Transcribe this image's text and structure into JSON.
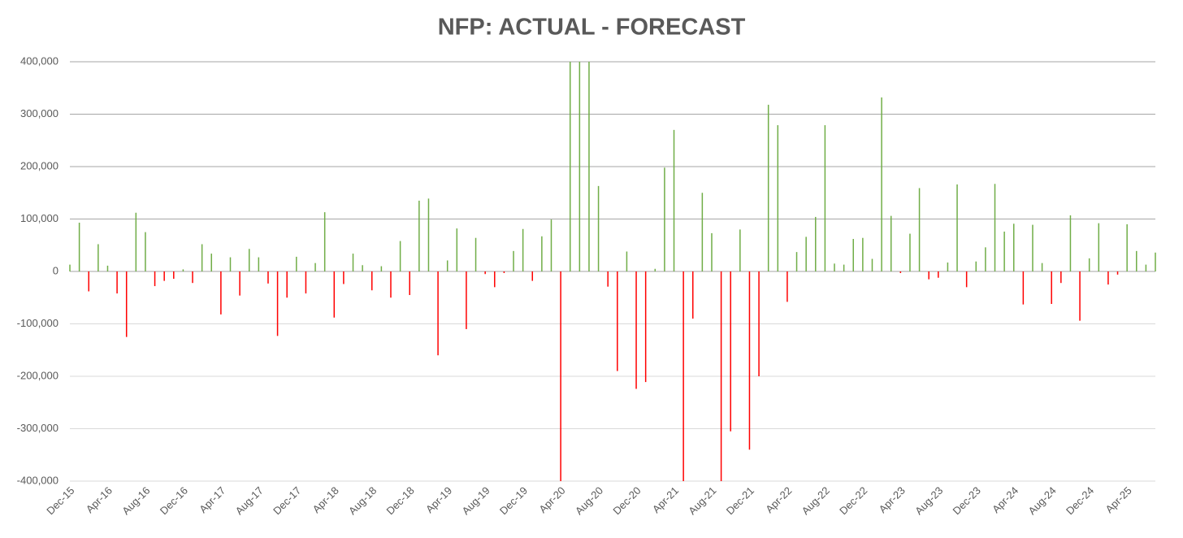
{
  "chart_data": {
    "type": "bar",
    "title": "NFP: ACTUAL - FORECAST",
    "categories": [
      "Dec-15",
      null,
      null,
      null,
      "Apr-16",
      null,
      null,
      null,
      "Aug-16",
      null,
      null,
      null,
      "Dec-16",
      null,
      null,
      null,
      "Apr-17",
      null,
      null,
      null,
      "Aug-17",
      null,
      null,
      null,
      "Dec-17",
      null,
      null,
      null,
      "Apr-18",
      null,
      null,
      null,
      "Aug-18",
      null,
      null,
      null,
      "Dec-18",
      null,
      null,
      null,
      "Apr-19",
      null,
      null,
      null,
      "Aug-19",
      null,
      null,
      null,
      "Dec-19",
      null,
      null,
      null,
      "Apr-20",
      null,
      null,
      null,
      "Aug-20",
      null,
      null,
      null,
      "Dec-20",
      null,
      null,
      null,
      "Apr-21",
      null,
      null,
      null,
      "Aug-21",
      null,
      null,
      null,
      "Dec-21",
      null,
      null,
      null,
      "Apr-22",
      null,
      null,
      null,
      "Aug-22",
      null,
      null,
      null,
      "Dec-22",
      null,
      null,
      null,
      "Apr-23",
      null,
      null,
      null,
      "Aug-23",
      null,
      null,
      null,
      "Dec-23",
      null,
      null,
      null,
      "Apr-24",
      null,
      null,
      null,
      "Aug-24",
      null,
      null,
      null,
      "Dec-24",
      null,
      null,
      null,
      "Apr-25",
      null,
      null,
      null
    ],
    "values": [
      13000,
      93000,
      -38000,
      52000,
      11000,
      -42000,
      -125000,
      112000,
      75000,
      -28000,
      -18000,
      -14000,
      4000,
      -22000,
      52000,
      34000,
      -82000,
      27000,
      -46000,
      43000,
      27000,
      -23000,
      -123000,
      -50000,
      28000,
      -42000,
      16000,
      113000,
      -88000,
      -24000,
      34000,
      12000,
      -36000,
      10000,
      -50000,
      58000,
      -45000,
      135000,
      139000,
      -160000,
      21000,
      82000,
      -110000,
      64000,
      -5000,
      -30000,
      -3000,
      39000,
      81000,
      -18000,
      67000,
      99000,
      -400000,
      400000,
      400000,
      400000,
      163000,
      -29000,
      -190000,
      38000,
      -224000,
      -211000,
      5000,
      198000,
      270000,
      -400000,
      -90000,
      150000,
      73000,
      -400000,
      -305000,
      80000,
      -340000,
      -200000,
      318000,
      279000,
      -58000,
      37000,
      66000,
      104000,
      279000,
      15000,
      13000,
      62000,
      64000,
      24000,
      332000,
      106000,
      -3000,
      72000,
      159000,
      -15000,
      -12000,
      17000,
      166000,
      -30000,
      19000,
      46000,
      167000,
      76000,
      91000,
      -63000,
      89000,
      16000,
      -62000,
      -22000,
      107000,
      -94000,
      25000,
      92000,
      -25000,
      -6000,
      90000,
      39000,
      13000,
      36000
    ],
    "positive_color": "#70ad47",
    "negative_color": "#ff0000",
    "ylim": [
      -400000,
      400000
    ],
    "yticks": [
      {
        "value": -400000,
        "label": "-400,000"
      },
      {
        "value": -300000,
        "label": "-300,000"
      },
      {
        "value": -200000,
        "label": "-200,000"
      },
      {
        "value": -100000,
        "label": "-100,000"
      },
      0,
      {
        "value": 100000,
        "label": "100,000"
      },
      {
        "value": 200000,
        "label": "200,000"
      },
      {
        "value": 300000,
        "label": "300,000"
      },
      {
        "value": 400000,
        "label": "400,000"
      }
    ],
    "grid": true
  }
}
